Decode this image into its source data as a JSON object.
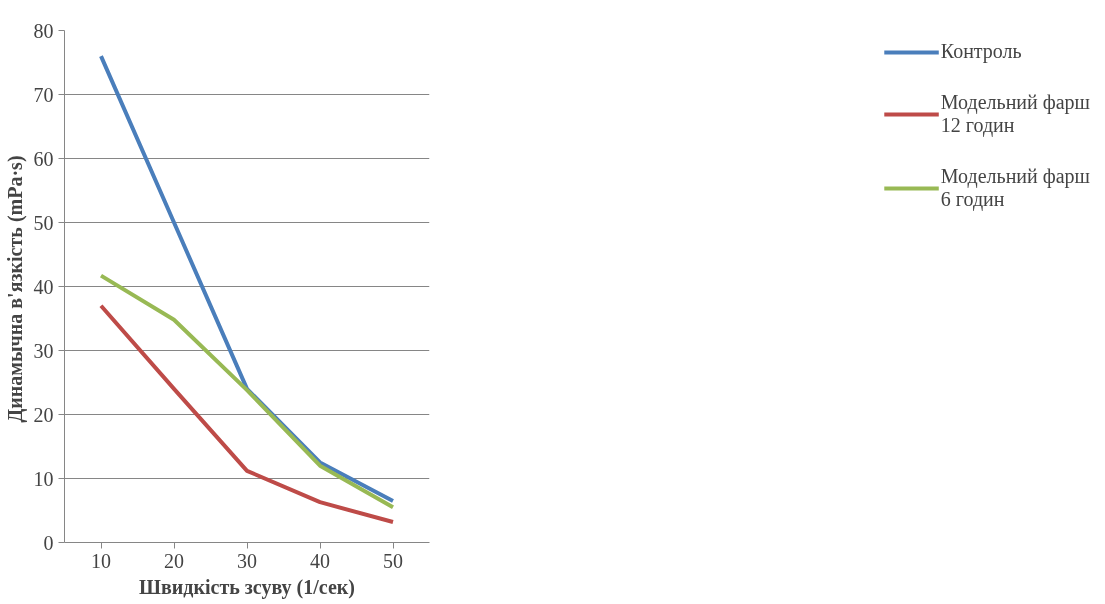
{
  "chart_data": {
    "type": "line",
    "xlabel": "Швидкість зсуву (1/сек)",
    "ylabel": "Динамычна  в'язкість (mPa·s)",
    "categories": [
      "10",
      "20",
      "30",
      "40",
      "50"
    ],
    "series": [
      {
        "name": "Контроль",
        "color": "#4a7ebb",
        "values": [
          76,
          50,
          24,
          12.5,
          6.5
        ]
      },
      {
        "name": "Модельний фарш 12 годин",
        "color": "#be4b48",
        "values": [
          37,
          24,
          11.2,
          6.3,
          3.2
        ]
      },
      {
        "name": "Модельний фарш 6 годин",
        "color": "#98b954",
        "values": [
          41.7,
          34.8,
          23.8,
          12,
          5.5
        ]
      }
    ],
    "ylim": [
      0,
      80
    ],
    "yticks": [
      0,
      10,
      20,
      30,
      40,
      50,
      60,
      70,
      80
    ],
    "grid": "y",
    "legend": "right",
    "marker": "none",
    "line_style": "solid"
  }
}
